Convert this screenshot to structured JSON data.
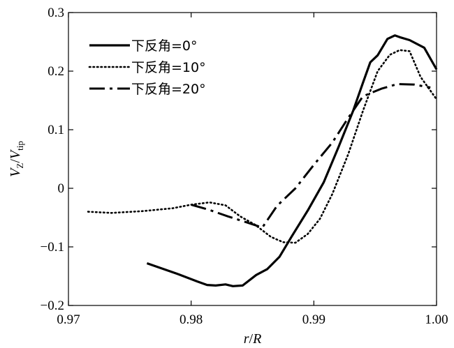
{
  "chart_data": {
    "type": "line",
    "xlabel": "r/R",
    "ylabel": "VZ/Vtip",
    "ylabel_parts": {
      "main1": "V",
      "sub1": "Z",
      "slash": "/",
      "main2": "V",
      "sub2": "tip"
    },
    "xlabel_parts": {
      "r": "r",
      "slash": "/",
      "R": "R"
    },
    "xlim": [
      0.97,
      1.0
    ],
    "ylim": [
      -0.2,
      0.3
    ],
    "xticks": [
      0.97,
      0.98,
      0.99,
      1.0
    ],
    "xtick_labels": [
      "0.97",
      "0.98",
      "0.99",
      "1.00"
    ],
    "yticks": [
      -0.2,
      -0.1,
      0,
      0.1,
      0.2,
      0.3
    ],
    "ytick_labels": [
      "−0.2",
      "−0.1",
      "0",
      "0.1",
      "0.2",
      "0.3"
    ],
    "legend_placement": "top-left",
    "grid": false,
    "series": [
      {
        "name": "下反角=0°",
        "style": "solid",
        "color": "#000000",
        "x": [
          0.9764,
          0.979,
          0.9805,
          0.9813,
          0.982,
          0.9828,
          0.9834,
          0.9842,
          0.9853,
          0.9862,
          0.9872,
          0.9882,
          0.9895,
          0.9908,
          0.992,
          0.9932,
          0.994,
          0.9946,
          0.9952,
          0.996,
          0.9966,
          0.997,
          0.9978,
          0.999,
          1.0
        ],
        "y": [
          -0.128,
          -0.147,
          -0.159,
          -0.165,
          -0.166,
          -0.164,
          -0.167,
          -0.166,
          -0.148,
          -0.138,
          -0.117,
          -0.082,
          -0.038,
          0.01,
          0.07,
          0.132,
          0.18,
          0.215,
          0.227,
          0.255,
          0.261,
          0.258,
          0.253,
          0.24,
          0.203
        ]
      },
      {
        "name": "下反角=10°",
        "style": "dotted",
        "color": "#000000",
        "x": [
          0.9716,
          0.9735,
          0.976,
          0.9785,
          0.98,
          0.9815,
          0.9828,
          0.984,
          0.9852,
          0.9865,
          0.9875,
          0.9885,
          0.9895,
          0.9905,
          0.9915,
          0.9928,
          0.994,
          0.9952,
          0.9962,
          0.997,
          0.9978,
          0.9987,
          1.0
        ],
        "y": [
          -0.04,
          -0.042,
          -0.039,
          -0.034,
          -0.028,
          -0.024,
          -0.029,
          -0.048,
          -0.062,
          -0.083,
          -0.092,
          -0.093,
          -0.078,
          -0.052,
          -0.01,
          0.058,
          0.132,
          0.2,
          0.228,
          0.236,
          0.234,
          0.19,
          0.152
        ]
      },
      {
        "name": "下反角=20°",
        "style": "dashdot",
        "color": "#000000",
        "x": [
          0.98,
          0.9815,
          0.983,
          0.9845,
          0.9858,
          0.987,
          0.9885,
          0.99,
          0.9915,
          0.9928,
          0.994,
          0.9955,
          0.9968,
          0.9982,
          0.9995
        ],
        "y": [
          -0.028,
          -0.037,
          -0.048,
          -0.058,
          -0.067,
          -0.03,
          0.0,
          0.04,
          0.078,
          0.12,
          0.157,
          0.17,
          0.178,
          0.177,
          0.172
        ]
      }
    ]
  }
}
